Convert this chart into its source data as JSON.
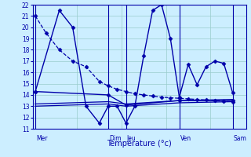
{
  "background_color": "#cceeff",
  "grid_color": "#99cccc",
  "line_color": "#0000aa",
  "xlabel": "Température (°c)",
  "ylim": [
    11,
    22
  ],
  "yticks": [
    11,
    12,
    13,
    14,
    15,
    16,
    17,
    18,
    19,
    20,
    21,
    22
  ],
  "xlim": [
    0,
    24
  ],
  "day_labels": [
    "Mer",
    "Dim",
    "Jeu",
    "Ven",
    "Sam"
  ],
  "day_positions": [
    0.3,
    8.5,
    10.5,
    16.5,
    22.5
  ],
  "vline_positions": [
    0.3,
    8.5,
    10.5,
    16.5,
    22.5
  ],
  "series": [
    {
      "x": [
        0.3,
        1.5,
        3.0,
        4.5,
        6.0,
        7.5,
        8.5,
        9.5,
        10.5,
        11.5,
        12.5,
        13.5,
        14.5,
        15.5,
        16.5,
        17.5,
        18.5,
        19.5,
        20.5,
        21.5,
        22.5
      ],
      "y": [
        21,
        19.5,
        18.0,
        17.0,
        16.5,
        15.2,
        14.8,
        14.5,
        14.3,
        14.1,
        14.0,
        13.9,
        13.8,
        13.75,
        13.7,
        13.65,
        13.6,
        13.55,
        13.5,
        13.45,
        13.4
      ],
      "style": "--",
      "marker": "D",
      "markersize": 2.5,
      "linewidth": 0.9
    },
    {
      "x": [
        0.3,
        3.0,
        4.5,
        6.0,
        7.5,
        8.5,
        9.5,
        10.5,
        11.5,
        12.5,
        13.5,
        14.5,
        15.5,
        16.5,
        17.5,
        18.5,
        19.5,
        20.5,
        21.5,
        22.5
      ],
      "y": [
        14.3,
        21.5,
        20.0,
        13.0,
        11.5,
        13.0,
        13.0,
        11.5,
        13.0,
        17.5,
        21.5,
        22.0,
        19.0,
        13.8,
        16.7,
        14.9,
        16.5,
        17.0,
        16.8,
        14.2
      ],
      "style": "-",
      "marker": "D",
      "markersize": 2.5,
      "linewidth": 1.0
    },
    {
      "x": [
        0.3,
        8.5,
        10.5,
        16.5,
        22.5
      ],
      "y": [
        14.3,
        14.0,
        13.1,
        13.5,
        13.5
      ],
      "style": "-",
      "marker": "D",
      "markersize": 2.5,
      "linewidth": 1.0
    },
    {
      "x": [
        0.3,
        8.5,
        10.5,
        16.5,
        22.5
      ],
      "y": [
        13.0,
        13.2,
        13.0,
        13.3,
        13.4
      ],
      "style": "-",
      "marker": null,
      "markersize": 0,
      "linewidth": 0.9
    },
    {
      "x": [
        0.3,
        8.5,
        10.5,
        16.5,
        22.5
      ],
      "y": [
        13.2,
        13.4,
        13.2,
        13.5,
        13.6
      ],
      "style": "-",
      "marker": null,
      "markersize": 0,
      "linewidth": 0.9
    }
  ]
}
